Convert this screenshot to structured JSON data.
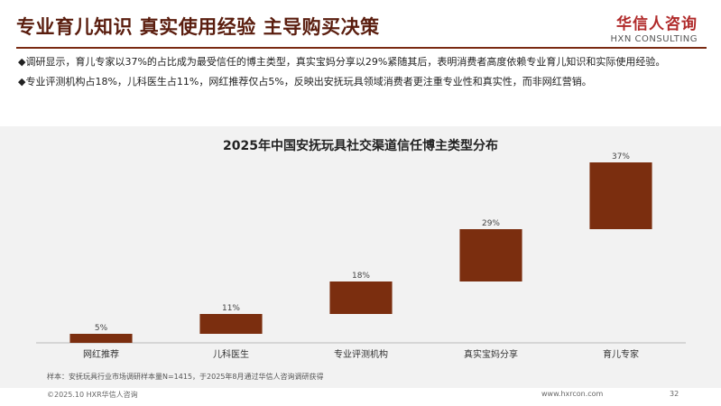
{
  "header": {
    "title": "专业育儿知识 真实使用经验 主导购买决策",
    "logo_cn": "华信人咨询",
    "logo_en": "HXN CONSULTING"
  },
  "bullets": [
    "◆调研显示，育儿专家以37%的占比成为最受信任的博主类型，真实宝妈分享以29%紧随其后，表明消费者高度依赖专业育儿知识和实际使用经验。",
    "◆专业评测机构占18%，儿科医生占11%，网红推荐仅占5%，反映出安抚玩具领域消费者更注重专业性和真实性，而非网红营销。"
  ],
  "chart_data": {
    "type": "bar",
    "style": "waterfall",
    "title": "2025年中国安抚玩具社交渠道信任博主类型分布",
    "categories": [
      "网红推荐",
      "儿科医生",
      "专业评测机构",
      "真实宝妈分享",
      "育儿专家"
    ],
    "values": [
      5,
      11,
      18,
      29,
      37
    ],
    "value_labels": [
      "5%",
      "11%",
      "18%",
      "29%",
      "37%"
    ],
    "unit": "%",
    "ylim": [
      0,
      100
    ],
    "grid": false,
    "legend": "none",
    "bar_color": "#7b2e0f"
  },
  "sample_note": "样本：安抚玩具行业市场调研样本量N=1415，于2025年8月通过华信人咨询调研获得",
  "footer": {
    "copyright": "©2025.10 HXR华信人咨询",
    "url": "www.hxrcon.com",
    "page": "32"
  }
}
